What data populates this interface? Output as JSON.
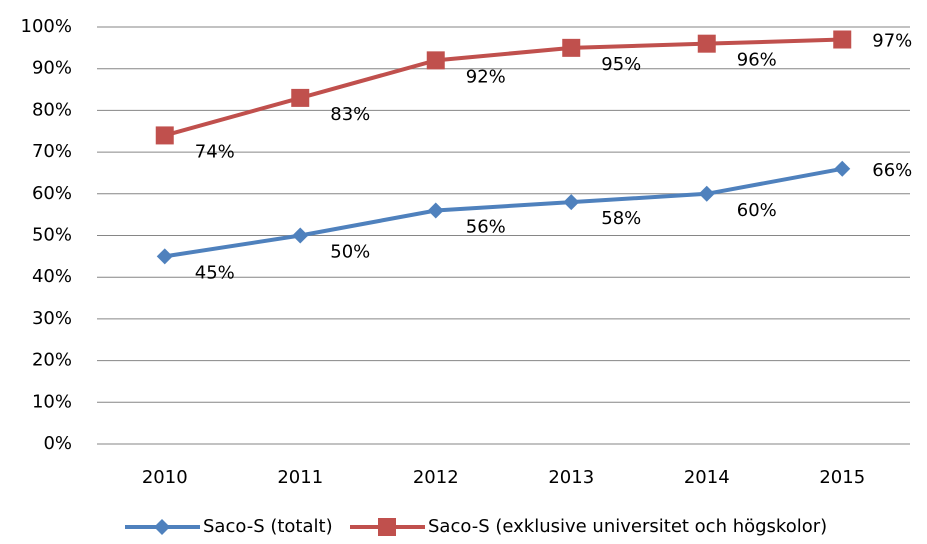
{
  "chart_data": {
    "type": "line",
    "categories": [
      "2010",
      "2011",
      "2012",
      "2013",
      "2014",
      "2015"
    ],
    "series": [
      {
        "name": "Saco-S (totalt)",
        "color": "#4f81bd",
        "marker": "diamond",
        "values": [
          45,
          50,
          56,
          58,
          60,
          66
        ],
        "value_labels": [
          "45%",
          "50%",
          "56%",
          "58%",
          "60%",
          "66%"
        ]
      },
      {
        "name": "Saco-S (exklusive universitet och högskolor)",
        "color": "#c0504d",
        "marker": "square",
        "values": [
          74,
          83,
          92,
          95,
          96,
          97
        ],
        "value_labels": [
          "74%",
          "83%",
          "92%",
          "95%",
          "96%",
          "97%"
        ]
      }
    ],
    "ylim": [
      0,
      100
    ],
    "yticks": [
      {
        "value": 0,
        "label": "0%"
      },
      {
        "value": 10,
        "label": "10%"
      },
      {
        "value": 20,
        "label": "20%"
      },
      {
        "value": 30,
        "label": "30%"
      },
      {
        "value": 40,
        "label": "40%"
      },
      {
        "value": 50,
        "label": "50%"
      },
      {
        "value": 60,
        "label": "60%"
      },
      {
        "value": 70,
        "label": "70%"
      },
      {
        "value": 80,
        "label": "80%"
      },
      {
        "value": 90,
        "label": "90%"
      },
      {
        "value": 100,
        "label": "100%"
      }
    ],
    "grid": true,
    "legend": "bottom"
  }
}
